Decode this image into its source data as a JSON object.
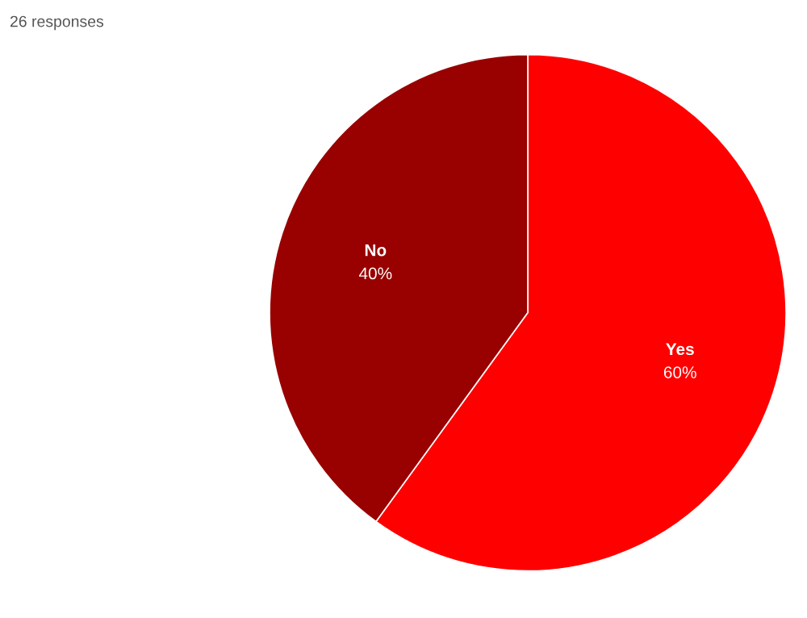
{
  "chart_data": {
    "type": "pie",
    "title": "26 responses",
    "categories": [
      "Yes",
      "No"
    ],
    "values": [
      60,
      40
    ],
    "value_labels": [
      "60%",
      "40%"
    ],
    "colors": [
      "#ff0000",
      "#990000"
    ]
  }
}
